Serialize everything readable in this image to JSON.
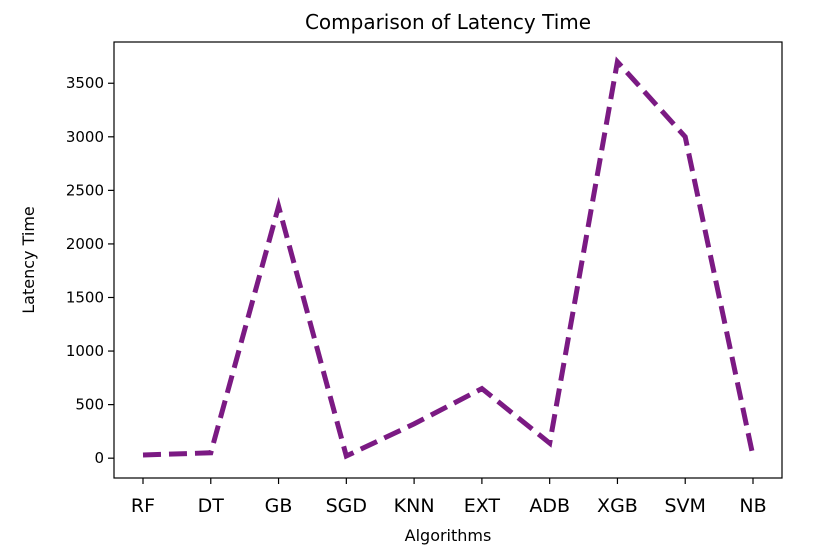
{
  "chart_data": {
    "type": "line",
    "title": "Comparison of Latency Time",
    "xlabel": "Algorithms",
    "ylabel": "Latency Time",
    "categories": [
      "RF",
      "DT",
      "GB",
      "SGD",
      "KNN",
      "EXT",
      "ADB",
      "XGB",
      "SVM",
      "NB"
    ],
    "series": [
      {
        "values": [
          30,
          50,
          2350,
          20,
          320,
          650,
          140,
          3700,
          3000,
          20
        ],
        "color": "#7b1a83",
        "linestyle": "dashed"
      }
    ],
    "yticks": [
      0,
      500,
      1000,
      1500,
      2000,
      2500,
      3000,
      3500
    ],
    "ylim": [
      -185,
      3885
    ],
    "grid": false
  }
}
